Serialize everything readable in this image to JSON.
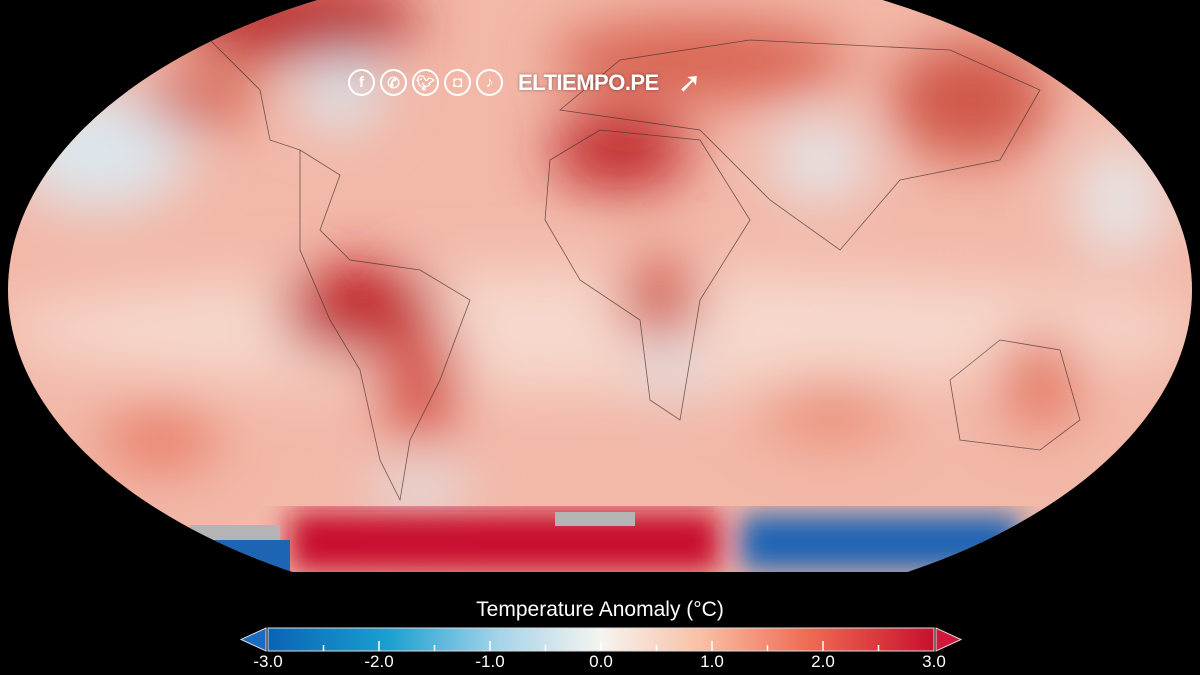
{
  "watermark": {
    "brand": "ELTIEMPO.PE",
    "social_icons": [
      "facebook-icon",
      "whatsapp-icon",
      "twitter-icon",
      "instagram-icon",
      "tiktok-icon"
    ],
    "cursor_icon": "click-cursor-icon"
  },
  "colorbar": {
    "title": "Temperature Anomaly (°C)",
    "range": [
      -3.0,
      3.0
    ],
    "tick_labels": [
      "-3.0",
      "-2.0",
      "-1.0",
      "0.0",
      "1.0",
      "2.0",
      "3.0"
    ],
    "colors": {
      "min": "#0a64b4",
      "low": "#1aa0d0",
      "neutral": "#f4f4f2",
      "high": "#f0806a",
      "max": "#c8102e"
    },
    "extend_arrows": [
      "left",
      "right"
    ]
  },
  "map": {
    "projection": "Robinson",
    "colors": {
      "warm": "#e8826e",
      "hot": "#c81e28",
      "cool": "#c8dce8",
      "cold": "#1e64b4",
      "no_data": "#b4b4b4"
    }
  }
}
